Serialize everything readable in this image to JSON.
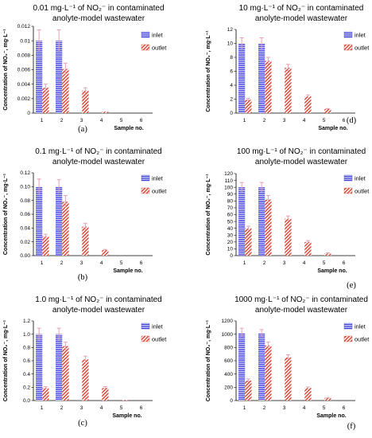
{
  "colors": {
    "inlet": "#3b3bd9",
    "outlet": "#d94a3b",
    "error": "#e6a0b0",
    "axis": "#000000",
    "background": "#ffffff"
  },
  "legend_labels": [
    "inlet",
    "outlet"
  ],
  "x_axis_label": "Sample no.",
  "y_axis_label": "Concentration of NO₂⁻, mg·L⁻¹",
  "chart_data": [
    {
      "type": "bar",
      "panel_label": "(a)",
      "title_line1": "0.01 mg·L⁻¹ of NO₂⁻ in contaminated",
      "title_line2": "anolyte-model wastewater",
      "categories": [
        "1",
        "2",
        "3",
        "4",
        "5",
        "6"
      ],
      "series": [
        {
          "name": "inlet",
          "values": [
            0.01,
            0.01,
            null,
            null,
            null,
            null
          ],
          "errors": [
            0.0015,
            0.0015,
            null,
            null,
            null,
            null
          ]
        },
        {
          "name": "outlet",
          "values": [
            0.0035,
            0.0061,
            0.0031,
            0.0002,
            0,
            0
          ],
          "errors": [
            0.0005,
            0.0008,
            0.0004,
            0,
            0,
            0
          ]
        }
      ],
      "ylim": [
        0,
        0.012
      ],
      "yticks": [
        "0",
        "0.002",
        "0.004",
        "0.006",
        "0.008",
        "0.01",
        "0.012"
      ],
      "xlabel": "Sample no.",
      "ylabel": "Concentration of NO₂⁻, mg·L⁻¹",
      "legend": "top-right"
    },
    {
      "type": "bar",
      "panel_label": "(b)",
      "title_line1": "0.1 mg·L⁻¹ of NO₂⁻ in contaminated",
      "title_line2": "anolyte-model wastewater",
      "categories": [
        "1",
        "2",
        "3",
        "4",
        "5",
        "6"
      ],
      "series": [
        {
          "name": "inlet",
          "values": [
            0.1,
            0.1,
            null,
            null,
            null,
            null
          ],
          "errors": [
            0.011,
            0.01,
            null,
            null,
            null,
            null
          ]
        },
        {
          "name": "outlet",
          "values": [
            0.028,
            0.078,
            0.042,
            0.008,
            0,
            0
          ],
          "errors": [
            0.003,
            0.009,
            0.005,
            0.001,
            0,
            0
          ]
        }
      ],
      "ylim": [
        0,
        0.12
      ],
      "yticks": [
        "0.00",
        "0.02",
        "0.04",
        "0.06",
        "0.08",
        "0.10",
        "0.12"
      ],
      "xlabel": "Sample no.",
      "ylabel": "Concentration of NO₂⁻, mg·L⁻¹",
      "legend": "top-right"
    },
    {
      "type": "bar",
      "panel_label": "(c)",
      "title_line1": "1.0 mg·L⁻¹ of NO₂⁻ in contaminated",
      "title_line2": "anolyte-model wastewater",
      "categories": [
        "1",
        "2",
        "3",
        "4",
        "5",
        "6"
      ],
      "series": [
        {
          "name": "inlet",
          "values": [
            1.0,
            1.0,
            null,
            null,
            null,
            null
          ],
          "errors": [
            0.09,
            0.09,
            null,
            null,
            null,
            null
          ]
        },
        {
          "name": "outlet",
          "values": [
            0.19,
            0.82,
            0.62,
            0.19,
            0.01,
            0
          ],
          "errors": [
            0.02,
            0.06,
            0.05,
            0.02,
            0,
            0
          ]
        }
      ],
      "ylim": [
        0,
        1.2
      ],
      "yticks": [
        "0.0",
        "0.2",
        "0.4",
        "0.6",
        "0.8",
        "1.0",
        "1.2"
      ],
      "xlabel": "Sample no.",
      "ylabel": "Concentration of NO₂⁻, mg·L⁻¹",
      "legend": "top-right"
    },
    {
      "type": "bar",
      "panel_label": "(d)",
      "title_line1": "10 mg·L⁻¹ of NO₂⁻ in contaminated",
      "title_line2": "anolyte-model wastewater",
      "categories": [
        "1",
        "2",
        "3",
        "4",
        "5",
        "6"
      ],
      "series": [
        {
          "name": "inlet",
          "values": [
            10,
            10,
            null,
            null,
            null,
            null
          ],
          "errors": [
            0.8,
            0.8,
            null,
            null,
            null,
            null
          ]
        },
        {
          "name": "outlet",
          "values": [
            1.9,
            7.5,
            6.5,
            2.4,
            0.6,
            0
          ],
          "errors": [
            0.2,
            0.5,
            0.5,
            0.2,
            0.05,
            0
          ]
        }
      ],
      "ylim": [
        0,
        12
      ],
      "yticks": [
        "0",
        "2",
        "4",
        "6",
        "8",
        "10",
        "12"
      ],
      "xlabel": "Sample no.",
      "ylabel": "Concentration of NO₂⁻, mg·L⁻¹",
      "legend": "top-right"
    },
    {
      "type": "bar",
      "panel_label": "(e)",
      "title_line1": "100 mg·L⁻¹ of NO₂⁻ in contaminated",
      "title_line2": "anolyte-model wastewater",
      "categories": [
        "1",
        "2",
        "3",
        "4",
        "5",
        "6"
      ],
      "series": [
        {
          "name": "inlet",
          "values": [
            100,
            100,
            null,
            null,
            null,
            null
          ],
          "errors": [
            7,
            7,
            null,
            null,
            null,
            null
          ]
        },
        {
          "name": "outlet",
          "values": [
            40,
            82,
            54,
            20,
            3,
            0
          ],
          "errors": [
            3,
            6,
            4,
            2,
            1,
            0
          ]
        }
      ],
      "ylim": [
        0,
        120
      ],
      "yticks": [
        "0",
        "10",
        "20",
        "30",
        "40",
        "50",
        "60",
        "70",
        "80",
        "90",
        "100",
        "110",
        "120"
      ],
      "xlabel": "Sample no.",
      "ylabel": "Concentration of NO₂⁻, mg·L⁻¹",
      "legend": "top-right"
    },
    {
      "type": "bar",
      "panel_label": "(f)",
      "title_line1": "1000 mg·L⁻¹ of NO₂⁻ in contaminated",
      "title_line2": "anolyte-model wastewater",
      "categories": [
        "1",
        "2",
        "3",
        "4",
        "5",
        "6"
      ],
      "series": [
        {
          "name": "inlet",
          "values": [
            1020,
            1010,
            null,
            null,
            null,
            null
          ],
          "errors": [
            70,
            60,
            null,
            null,
            null,
            null
          ]
        },
        {
          "name": "outlet",
          "values": [
            300,
            830,
            650,
            190,
            40,
            0
          ],
          "errors": [
            25,
            50,
            40,
            15,
            5,
            0
          ]
        }
      ],
      "ylim": [
        0,
        1200
      ],
      "yticks": [
        "0",
        "200",
        "400",
        "600",
        "800",
        "1000",
        "1200"
      ],
      "xlabel": "Sample no.",
      "ylabel": "Concentration of NO₂⁻, mg·L⁻¹",
      "legend": "top-right"
    }
  ]
}
